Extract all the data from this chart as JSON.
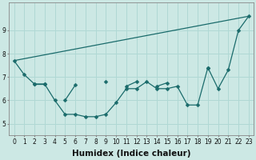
{
  "xlabel": "Humidex (Indice chaleur)",
  "ylabel": "",
  "background_color": "#cce8e4",
  "grid_color": "#b0d8d4",
  "line_color": "#1a6b6b",
  "x_values": [
    0,
    1,
    2,
    3,
    4,
    5,
    6,
    7,
    8,
    9,
    10,
    11,
    12,
    13,
    14,
    15,
    16,
    17,
    18,
    19,
    20,
    21,
    22,
    23
  ],
  "series1": [
    7.7,
    7.1,
    6.7,
    6.7,
    6.0,
    5.4,
    5.4,
    5.3,
    5.3,
    5.4,
    5.9,
    6.5,
    6.5,
    6.8,
    6.5,
    6.5,
    6.6,
    5.8,
    5.8,
    7.4,
    6.5,
    7.3,
    9.0,
    9.6
  ],
  "series2_x": [
    0,
    23
  ],
  "series2_y": [
    7.7,
    9.6
  ],
  "series3": [
    null,
    null,
    6.7,
    6.7,
    null,
    6.0,
    6.65,
    null,
    null,
    6.8,
    null,
    6.6,
    6.8,
    null,
    6.6,
    6.75,
    null,
    null,
    null,
    7.4,
    null,
    null,
    null,
    null
  ],
  "ylim": [
    4.5,
    10.2
  ],
  "xlim": [
    -0.5,
    23.5
  ],
  "yticks": [
    5,
    6,
    7,
    8,
    9
  ],
  "xticks": [
    0,
    1,
    2,
    3,
    4,
    5,
    6,
    7,
    8,
    9,
    10,
    11,
    12,
    13,
    14,
    15,
    16,
    17,
    18,
    19,
    20,
    21,
    22,
    23
  ],
  "tick_fontsize": 5.5,
  "xlabel_fontsize": 7.5,
  "marker_size": 2.5,
  "linewidth": 0.9
}
